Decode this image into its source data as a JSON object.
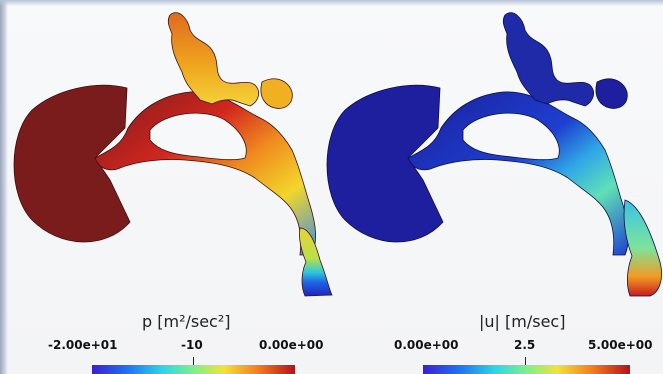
{
  "panels": {
    "pressure": {
      "colorbar_title": "p [m²/sec²]",
      "ticks": [
        "-2.00e+01",
        "-10",
        "0.00e+00"
      ]
    },
    "velocity": {
      "colorbar_title": "|u| [m/sec]",
      "ticks": [
        "0.00e+00",
        "2.5",
        "5.00e+00"
      ]
    }
  },
  "colormap": {
    "low": "#3a1fd1",
    "mid": "#7df08a",
    "high": "#b3121c"
  }
}
